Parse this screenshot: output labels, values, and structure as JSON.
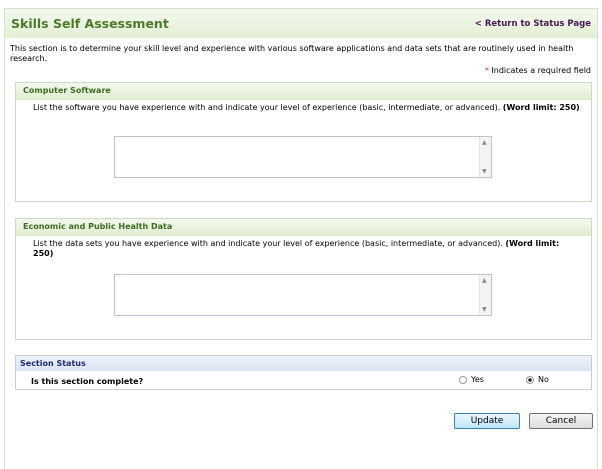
{
  "header": {
    "title": "Skills Self Assessment",
    "return_link": "< Return to Status Page"
  },
  "intro": "This section is to determine your skill level and experience with various software applications and data sets that are routinely used in health research.",
  "required": {
    "asterisk": "*",
    "text": "Indicates a required field"
  },
  "sections": [
    {
      "title": "Computer Software",
      "desc": "List the software you have experience with and indicate your level of experience (basic, intermediate, or advanced). ",
      "limit": "(Word limit: 250)",
      "value": ""
    },
    {
      "title": "Economic and Public Health Data",
      "desc": "List the data sets you have experience with and indicate your level of experience (basic, intermediate, or advanced). ",
      "limit": "(Word limit: 250)",
      "value": ""
    }
  ],
  "status": {
    "title": "Section Status",
    "question": "Is this section complete?",
    "options": [
      {
        "label": "Yes",
        "checked": false
      },
      {
        "label": "No",
        "checked": true
      }
    ]
  },
  "buttons": {
    "update": "Update",
    "cancel": "Cancel"
  }
}
